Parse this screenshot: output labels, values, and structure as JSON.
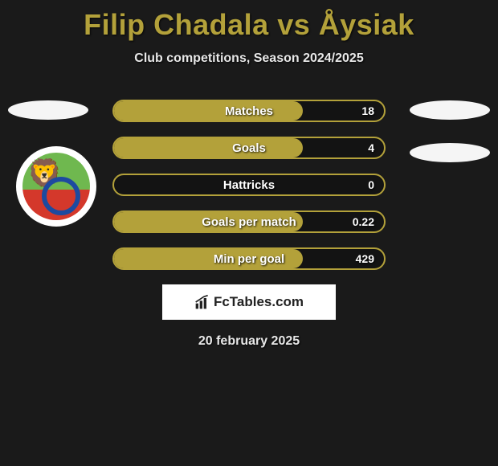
{
  "title": "Filip Chadala vs Åysiak",
  "subtitle": "Club competitions, Season 2024/2025",
  "date_text": "20 february 2025",
  "brand_text": "FcTables.com",
  "colors": {
    "accent": "#b3a13a",
    "background": "#1a1a1a",
    "text": "#e8e8e8"
  },
  "stats": [
    {
      "label": "Matches",
      "value": "18",
      "fill_pct": 70
    },
    {
      "label": "Goals",
      "value": "4",
      "fill_pct": 70
    },
    {
      "label": "Hattricks",
      "value": "0",
      "fill_pct": 0
    },
    {
      "label": "Goals per match",
      "value": "0.22",
      "fill_pct": 70
    },
    {
      "label": "Min per goal",
      "value": "429",
      "fill_pct": 70
    }
  ]
}
